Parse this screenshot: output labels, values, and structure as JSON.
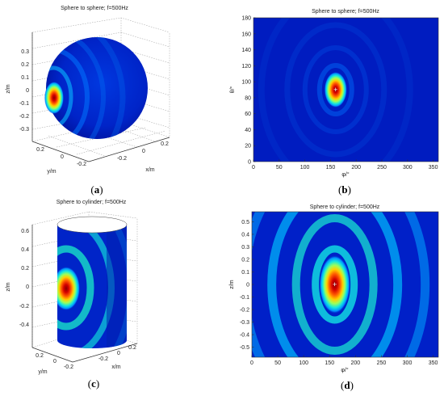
{
  "chart_data": [
    {
      "id": "a",
      "type": "heatmap",
      "title": "Sphere to sphere; f=500Hz",
      "surface": "sphere",
      "panel_label": "(a)",
      "xlabel": "x/m",
      "ylabel": "y/m",
      "zlabel": "z/m",
      "z_ticks": [
        "0.3",
        "0.2",
        "0.1",
        "0",
        "-0.1",
        "-0.2",
        "-0.3"
      ],
      "y_ticks": [
        "0.2",
        "0",
        "-0.2"
      ],
      "x_ticks": [
        "0.2",
        "0",
        "-0.2"
      ],
      "colormap": "jet"
    },
    {
      "id": "b",
      "type": "heatmap",
      "title": "Sphere to sphere; f=500Hz",
      "panel_label": "(b)",
      "xlabel": "φ/°",
      "ylabel": "θ/°",
      "xlim": [
        0,
        360
      ],
      "ylim": [
        0,
        180
      ],
      "x_ticks": [
        0,
        50,
        100,
        150,
        200,
        250,
        300,
        350
      ],
      "y_ticks": [
        0,
        20,
        40,
        60,
        80,
        100,
        120,
        140,
        160,
        180
      ],
      "peak": {
        "x": 160,
        "y": 90,
        "marker": "+"
      },
      "colormap": "jet"
    },
    {
      "id": "c",
      "type": "heatmap",
      "title": "Sphere to cylinder; f=500Hz",
      "surface": "cylinder",
      "panel_label": "(c)",
      "xlabel": "x/m",
      "ylabel": "y/m",
      "zlabel": "z/m",
      "z_ticks": [
        "0.6",
        "0.4",
        "0.2",
        "0",
        "-0.2",
        "-0.4"
      ],
      "y_ticks": [
        "0.2",
        "0",
        "-0.2"
      ],
      "x_ticks": [
        "0.2",
        "0",
        "-0.2"
      ],
      "colormap": "jet"
    },
    {
      "id": "d",
      "type": "heatmap",
      "title": "Sphere to cylinder; f=500Hz",
      "panel_label": "(d)",
      "xlabel": "φ/°",
      "ylabel": "z/m",
      "xlim": [
        0,
        360
      ],
      "ylim": [
        -0.58,
        0.58
      ],
      "x_ticks": [
        0,
        50,
        100,
        150,
        200,
        250,
        300,
        350
      ],
      "y_ticks": [
        -0.5,
        -0.4,
        -0.3,
        -0.2,
        -0.1,
        0,
        0.1,
        0.2,
        0.3,
        0.4,
        0.5
      ],
      "peak": {
        "x": 160,
        "y": 0,
        "marker": "+"
      },
      "colormap": "jet"
    }
  ],
  "colors": {
    "background_field": "#0018b8",
    "low": "#00108f",
    "mid": "#00b8ff",
    "ring": "#19e3d0",
    "hot": "#ffdc00",
    "peak": "#c00000"
  }
}
